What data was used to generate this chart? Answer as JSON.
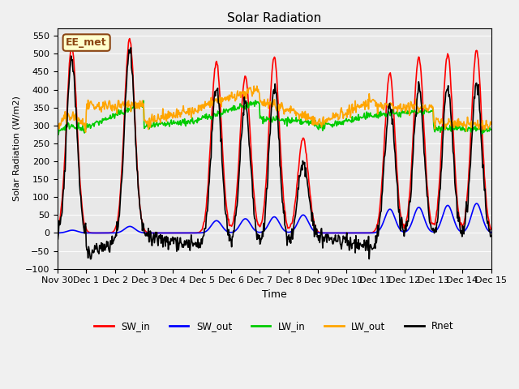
{
  "title": "Solar Radiation",
  "ylabel": "Solar Radiation (W/m2)",
  "xlabel": "Time",
  "ylim": [
    -100,
    570
  ],
  "yticks": [
    -100,
    -50,
    0,
    50,
    100,
    150,
    200,
    250,
    300,
    350,
    400,
    450,
    500,
    550
  ],
  "bg_color": "#e8e8e8",
  "annotation_text": "EE_met",
  "annotation_bg": "#ffffcc",
  "annotation_border": "#8B4513",
  "colors": {
    "SW_in": "#ff0000",
    "SW_out": "#0000ff",
    "LW_in": "#00cc00",
    "LW_out": "#ffa500",
    "Rnet": "#000000"
  },
  "x_tick_labels": [
    "Nov 30",
    "Dec 1",
    "Dec 2",
    "Dec 3",
    "Dec 4",
    "Dec 5",
    "Dec 6",
    "Dec 7",
    "Dec 8",
    "Dec 9",
    "Dec 10",
    "Dec 11",
    "Dec 12",
    "Dec 13",
    "Dec 14",
    "Dec 15"
  ],
  "legend_labels": [
    "SW_in",
    "SW_out",
    "LW_in",
    "LW_out",
    "Rnet"
  ]
}
